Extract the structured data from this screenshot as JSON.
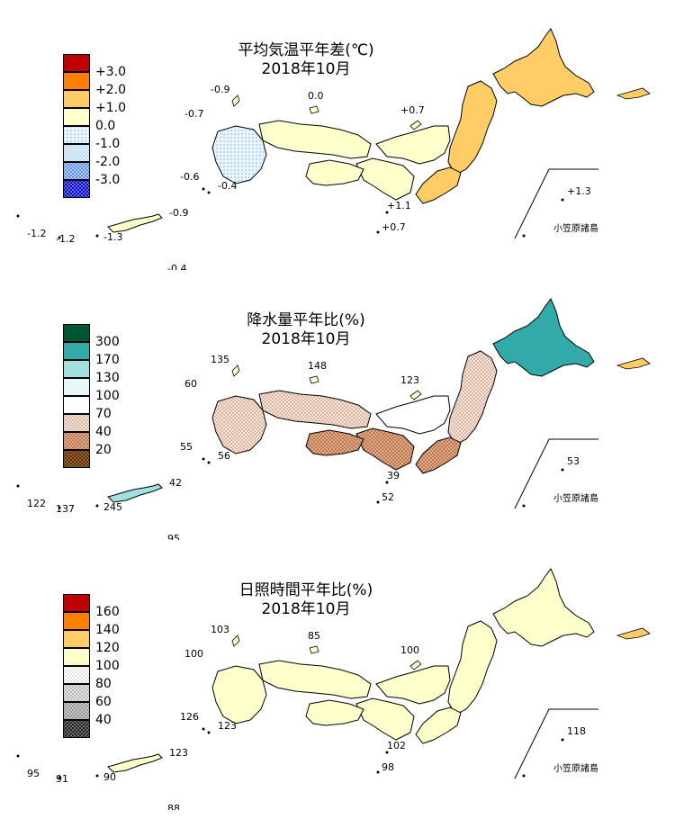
{
  "panels": [
    {
      "id": "temperature",
      "title_line1": "平均気温平年差(℃)",
      "title_line2": "2018年10月",
      "legend": [
        {
          "label": "+3.0",
          "color": "#c00000",
          "pattern": "solid"
        },
        {
          "label": "+2.0",
          "color": "#ff8000",
          "pattern": "solid"
        },
        {
          "label": "+1.0",
          "color": "#ffcc66",
          "pattern": "solid"
        },
        {
          "label": "0.0",
          "color": "#ffffcc",
          "pattern": "solid"
        },
        {
          "label": "-1.0",
          "color": "#dff0ff",
          "pattern": "dots-light"
        },
        {
          "label": "-2.0",
          "color": "#a8d0f0",
          "pattern": "dots-mid"
        },
        {
          "label": "-3.0",
          "color": "#6699ee",
          "pattern": "dots-dense"
        },
        {
          "label": "",
          "color": "#0000cc",
          "pattern": "dots-dark"
        }
      ],
      "region_colors": {
        "hokkaido": "#ffcc66",
        "tohoku": "#ffcc66",
        "kanto": "#ffcc66",
        "hokuriku": "#ffffcc",
        "kinki": "#ffffcc",
        "chugoku": "#ffffcc",
        "shikoku": "#ffffcc",
        "kyushu": "#dff0ff",
        "okinawa": "#ffffcc"
      },
      "station_labels": [
        "-0.9",
        "0.0",
        "-0.7",
        "+0.7",
        "-0.6",
        "-0.4",
        "+1.1",
        "+0.7",
        "-1.2",
        "-1.2",
        "-1.3",
        "-0.9",
        "-0.4"
      ],
      "bonin_label": "小笠原諸島",
      "bonin_value": "+1.3"
    },
    {
      "id": "precipitation",
      "title_line1": "降水量平年比(%)",
      "title_line2": "2018年10月",
      "legend": [
        {
          "label": "300",
          "color": "#005533",
          "pattern": "solid"
        },
        {
          "label": "170",
          "color": "#33aaaa",
          "pattern": "solid"
        },
        {
          "label": "130",
          "color": "#a0e0e0",
          "pattern": "solid"
        },
        {
          "label": "100",
          "color": "#e8f8f8",
          "pattern": "solid"
        },
        {
          "label": "70",
          "color": "#ffffff",
          "pattern": "solid"
        },
        {
          "label": "40",
          "color": "#f0d8c8",
          "pattern": "dots-brown-light"
        },
        {
          "label": "20",
          "color": "#c08060",
          "pattern": "dots-brown"
        },
        {
          "label": "",
          "color": "#603000",
          "pattern": "dots-brown-dark"
        }
      ],
      "region_colors": {
        "hokkaido": "#33aaaa",
        "tohoku": "#f0d8c8",
        "kanto": "#c08060",
        "hokuriku": "#ffffff",
        "kinki": "#c08060",
        "chugoku": "#f0d8c8",
        "shikoku": "#c08060",
        "kyushu": "#f0d8c8",
        "okinawa": "#a0e0e0"
      },
      "station_labels": [
        "135",
        "148",
        "60",
        "123",
        "55",
        "56",
        "39",
        "52",
        "122",
        "137",
        "245",
        "42",
        "95"
      ],
      "bonin_label": "小笠原諸島",
      "bonin_value": "53"
    },
    {
      "id": "sunshine",
      "title_line1": "日照時間平年比(%)",
      "title_line2": "2018年10月",
      "legend": [
        {
          "label": "160",
          "color": "#c00000",
          "pattern": "solid"
        },
        {
          "label": "140",
          "color": "#ff8000",
          "pattern": "solid"
        },
        {
          "label": "120",
          "color": "#ffcc66",
          "pattern": "solid"
        },
        {
          "label": "100",
          "color": "#ffffcc",
          "pattern": "solid"
        },
        {
          "label": "80",
          "color": "#ffffff",
          "pattern": "dots-grey-light"
        },
        {
          "label": "60",
          "color": "#dddddd",
          "pattern": "dots-grey"
        },
        {
          "label": "40",
          "color": "#999999",
          "pattern": "dots-grey-dark"
        },
        {
          "label": "",
          "color": "#333333",
          "pattern": "dots-black"
        }
      ],
      "region_colors": {
        "hokkaido": "#ffffcc",
        "tohoku": "#ffffcc",
        "kanto": "#ffffcc",
        "hokuriku": "#ffffcc",
        "kinki": "#ffffcc",
        "chugoku": "#ffffcc",
        "shikoku": "#ffffcc",
        "kyushu": "#ffffcc",
        "okinawa": "#ffffcc"
      },
      "station_labels": [
        "103",
        "85",
        "100",
        "100",
        "126",
        "123",
        "102",
        "98",
        "95",
        "91",
        "90",
        "123",
        "88"
      ],
      "bonin_label": "小笠原諸島",
      "bonin_value": "118"
    }
  ]
}
